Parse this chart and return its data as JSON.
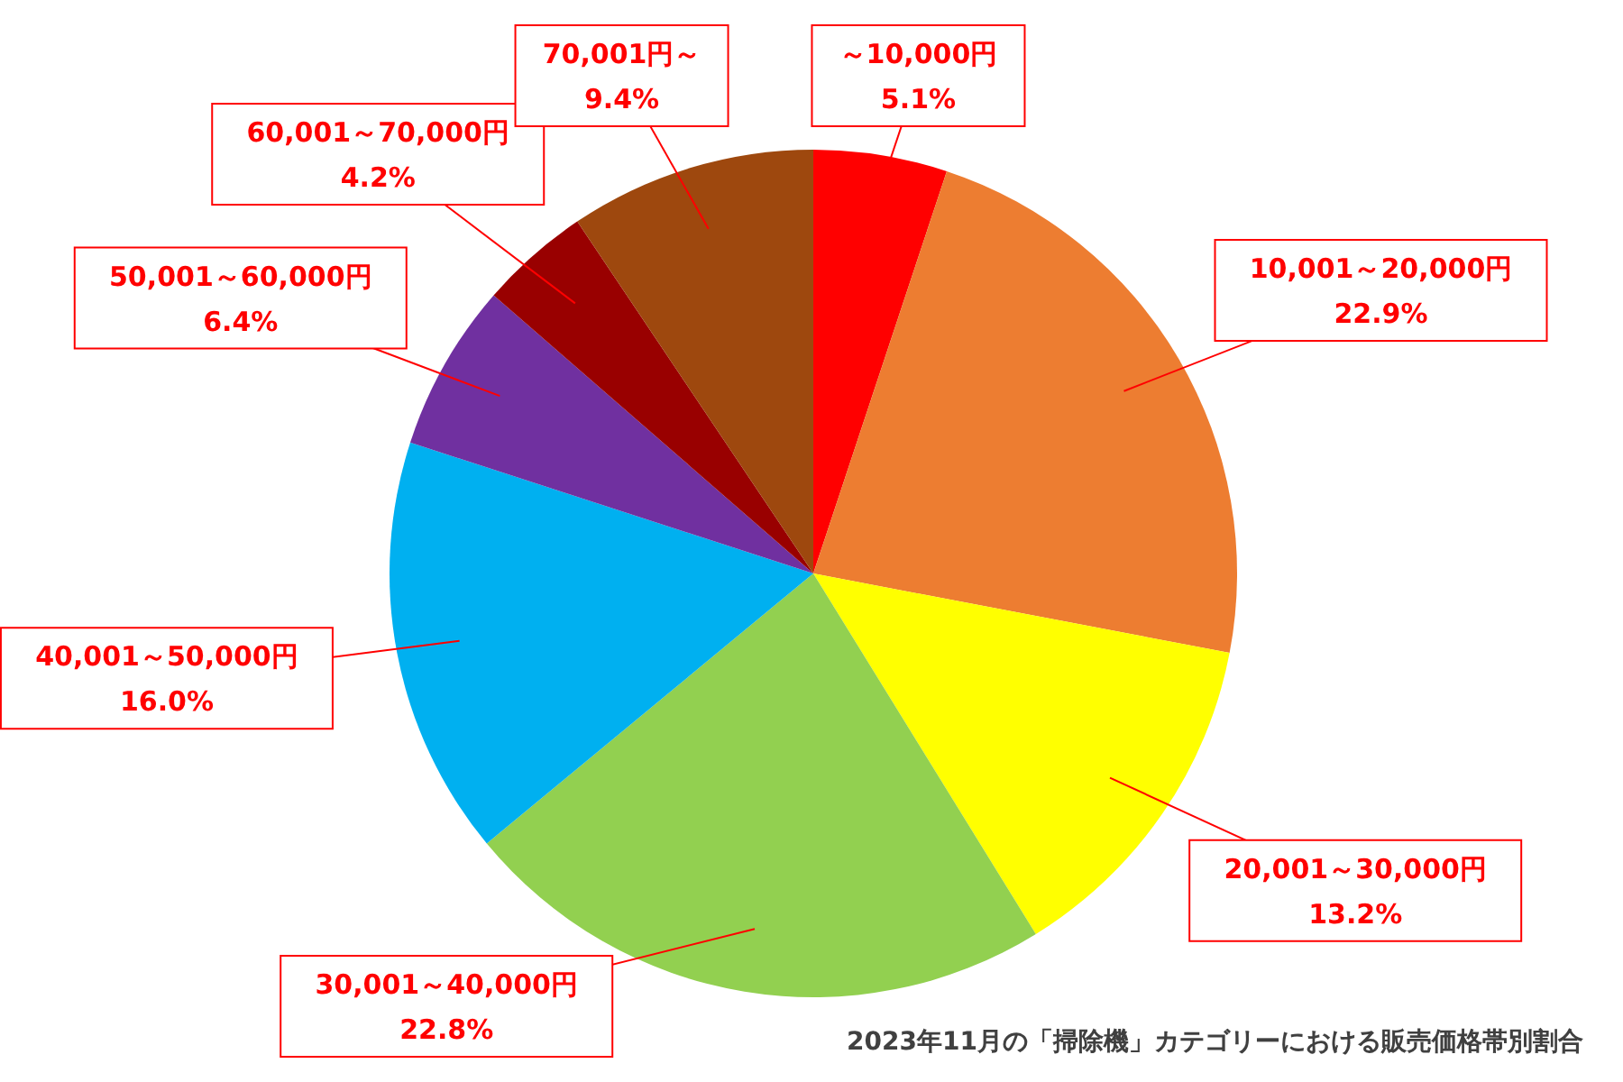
{
  "chart_data": {
    "type": "pie",
    "categories": [
      "～10,000円",
      "10,001～20,000円",
      "20,001～30,000円",
      "30,001～40,000円",
      "40,001～50,000円",
      "50,001～60,000円",
      "60,001～70,000円",
      "70,001円～"
    ],
    "values": [
      5.1,
      22.9,
      13.2,
      22.8,
      16.0,
      6.4,
      4.2,
      9.4
    ],
    "value_labels": [
      "5.1%",
      "22.9%",
      "13.2%",
      "22.8%",
      "16.0%",
      "6.4%",
      "4.2%",
      "9.4%"
    ],
    "colors": [
      "#ff0000",
      "#ed7d31",
      "#ffff00",
      "#92d050",
      "#00b0f0",
      "#7030a0",
      "#990000",
      "#9e480e"
    ],
    "annotations": [
      "2023年11月の「掃除機」カテゴリーにおける販売価格帯別割合"
    ]
  }
}
